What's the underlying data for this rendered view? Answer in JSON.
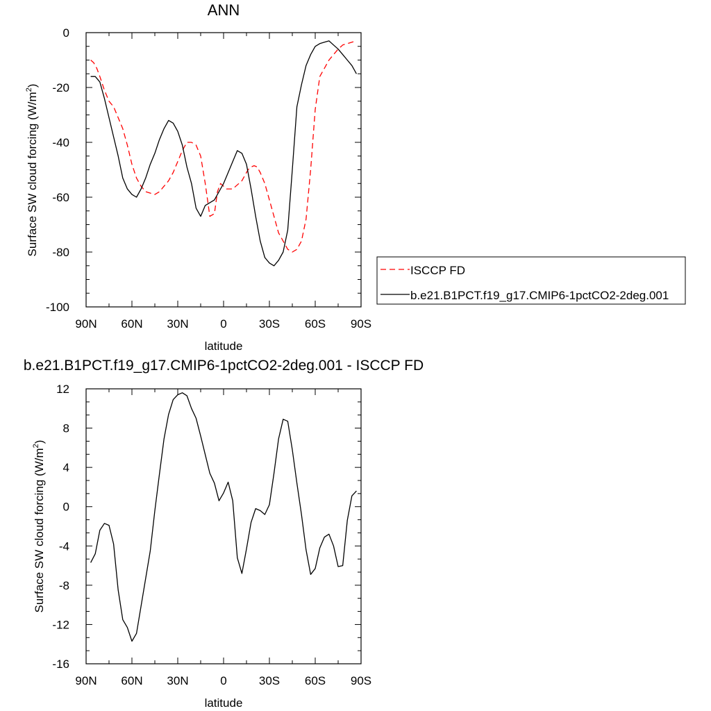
{
  "chart_data": [
    {
      "type": "line",
      "title": "ANN",
      "xlabel": "latitude",
      "ylabel": "Surface SW cloud forcing (W/m",
      "ylabel_sup": "2",
      "ylabel_tail": ")",
      "xlim": [
        90,
        -90
      ],
      "ylim": [
        -100,
        0
      ],
      "x_ticks": [
        90,
        60,
        30,
        0,
        -30,
        -60,
        -90
      ],
      "x_tick_labels": [
        "90N",
        "60N",
        "30N",
        "0",
        "30S",
        "60S",
        "90S"
      ],
      "y_ticks": [
        0,
        -20,
        -40,
        -60,
        -80,
        -100
      ],
      "y_tick_labels": [
        "0",
        "-20",
        "-40",
        "-60",
        "-80",
        "-100"
      ],
      "grid": false,
      "legend_position": "right",
      "series": [
        {
          "name": "ISCCP FD",
          "color": "#ff0000",
          "dash": "dashed",
          "x": [
            87,
            85,
            83,
            81,
            78,
            75,
            72,
            69,
            66,
            63,
            60,
            57,
            54,
            51,
            48,
            45,
            42,
            39,
            36,
            33,
            30,
            27,
            24,
            21,
            18,
            15,
            12,
            9,
            6,
            4,
            2,
            0,
            -2,
            -4,
            -6,
            -8,
            -10,
            -12,
            -14,
            -16,
            -18,
            -20,
            -22,
            -24,
            -27,
            -30,
            -33,
            -36,
            -39,
            -42,
            -45,
            -48,
            -51,
            -54,
            -57,
            -60,
            -63,
            -66,
            -69,
            -72,
            -75,
            -78,
            -81,
            -84,
            -87
          ],
          "y": [
            -10,
            -11,
            -13,
            -16,
            -21,
            -25,
            -27,
            -31,
            -35,
            -41,
            -48,
            -53,
            -56,
            -58,
            -58.5,
            -59,
            -58,
            -56,
            -54,
            -51,
            -47,
            -43,
            -40,
            -40,
            -41,
            -45,
            -55,
            -67,
            -66,
            -58,
            -55,
            -56,
            -57,
            -57,
            -57,
            -56,
            -55,
            -54,
            -52,
            -50,
            -49,
            -48.5,
            -49,
            -51,
            -55,
            -61,
            -67,
            -73,
            -76,
            -79,
            -80,
            -79,
            -76,
            -68,
            -50,
            -28,
            -16,
            -13,
            -10,
            -8,
            -6,
            -4.5,
            -4,
            -3.5,
            -3
          ]
        },
        {
          "name": "b.e21.B1PCT.f19_g17.CMIP6-1pctCO2-2deg.001",
          "color": "#000000",
          "dash": "solid",
          "x": [
            87,
            84,
            81,
            78,
            75,
            72,
            69,
            66,
            63,
            60,
            57,
            54,
            51,
            48,
            45,
            42,
            39,
            36,
            33,
            30,
            27,
            24,
            21,
            18,
            15,
            12,
            9,
            6,
            3,
            0,
            -3,
            -6,
            -9,
            -12,
            -15,
            -18,
            -21,
            -24,
            -27,
            -30,
            -33,
            -36,
            -39,
            -42,
            -45,
            -48,
            -51,
            -54,
            -57,
            -60,
            -63,
            -66,
            -69,
            -72,
            -75,
            -78,
            -81,
            -84,
            -87
          ],
          "y": [
            -16,
            -16,
            -18,
            -24,
            -31,
            -38,
            -45,
            -53,
            -57,
            -59,
            -60,
            -57,
            -53,
            -48,
            -44,
            -39,
            -35,
            -32,
            -33,
            -36,
            -41,
            -49,
            -55,
            -64,
            -67,
            -63,
            -62,
            -61,
            -58,
            -55,
            -51,
            -47,
            -43,
            -44,
            -48,
            -57,
            -67,
            -76,
            -82,
            -84,
            -85,
            -83,
            -80,
            -72,
            -50,
            -27,
            -19,
            -12,
            -8,
            -5,
            -4,
            -3.5,
            -3,
            -4.5,
            -6,
            -8,
            -10,
            -12,
            -15
          ]
        }
      ]
    },
    {
      "type": "line",
      "title": "b.e21.B1PCT.f19_g17.CMIP6-1pctCO2-2deg.001 - ISCCP FD",
      "xlabel": "latitude",
      "ylabel": "Surface SW cloud forcing (W/m",
      "ylabel_sup": "2",
      "ylabel_tail": ")",
      "xlim": [
        90,
        -90
      ],
      "ylim": [
        -16,
        12
      ],
      "x_ticks": [
        90,
        60,
        30,
        0,
        -30,
        -60,
        -90
      ],
      "x_tick_labels": [
        "90N",
        "60N",
        "30N",
        "0",
        "30S",
        "60S",
        "90S"
      ],
      "y_ticks": [
        12,
        8,
        4,
        0,
        -4,
        -8,
        -12,
        -16
      ],
      "y_tick_labels": [
        "12",
        "8",
        "4",
        "0",
        "-4",
        "-8",
        "-12",
        "-16"
      ],
      "grid": false,
      "series": [
        {
          "name": "",
          "color": "#000000",
          "dash": "solid",
          "x": [
            87,
            84,
            81,
            78,
            75,
            72,
            69,
            66,
            63,
            60,
            57,
            54,
            51,
            48,
            45,
            42,
            39,
            36,
            33,
            30,
            27,
            24,
            21,
            18,
            15,
            12,
            9,
            6,
            3,
            0,
            -3,
            -6,
            -9,
            -12,
            -15,
            -18,
            -21,
            -24,
            -27,
            -30,
            -33,
            -36,
            -39,
            -42,
            -45,
            -48,
            -51,
            -54,
            -57,
            -60,
            -63,
            -66,
            -69,
            -72,
            -75,
            -78,
            -81,
            -84,
            -87
          ],
          "y": [
            -5.7,
            -4.8,
            -2.4,
            -1.7,
            -1.9,
            -3.8,
            -8.5,
            -11.5,
            -12.3,
            -13.7,
            -12.9,
            -10.1,
            -7.3,
            -4.5,
            -0.4,
            3.3,
            6.9,
            9.4,
            10.9,
            11.4,
            11.6,
            11.3,
            10.0,
            9.0,
            7.2,
            5.3,
            3.4,
            2.4,
            0.6,
            1.4,
            2.5,
            0.6,
            -5.2,
            -6.8,
            -4.3,
            -1.6,
            -0.2,
            -0.4,
            -0.8,
            0.2,
            3.4,
            6.9,
            8.9,
            8.7,
            5.8,
            2.4,
            -0.8,
            -4.4,
            -6.9,
            -6.3,
            -4.2,
            -3.1,
            -2.8,
            -4.0,
            -6.1,
            -6.0,
            -1.4,
            1.1,
            1.6
          ]
        }
      ]
    }
  ]
}
